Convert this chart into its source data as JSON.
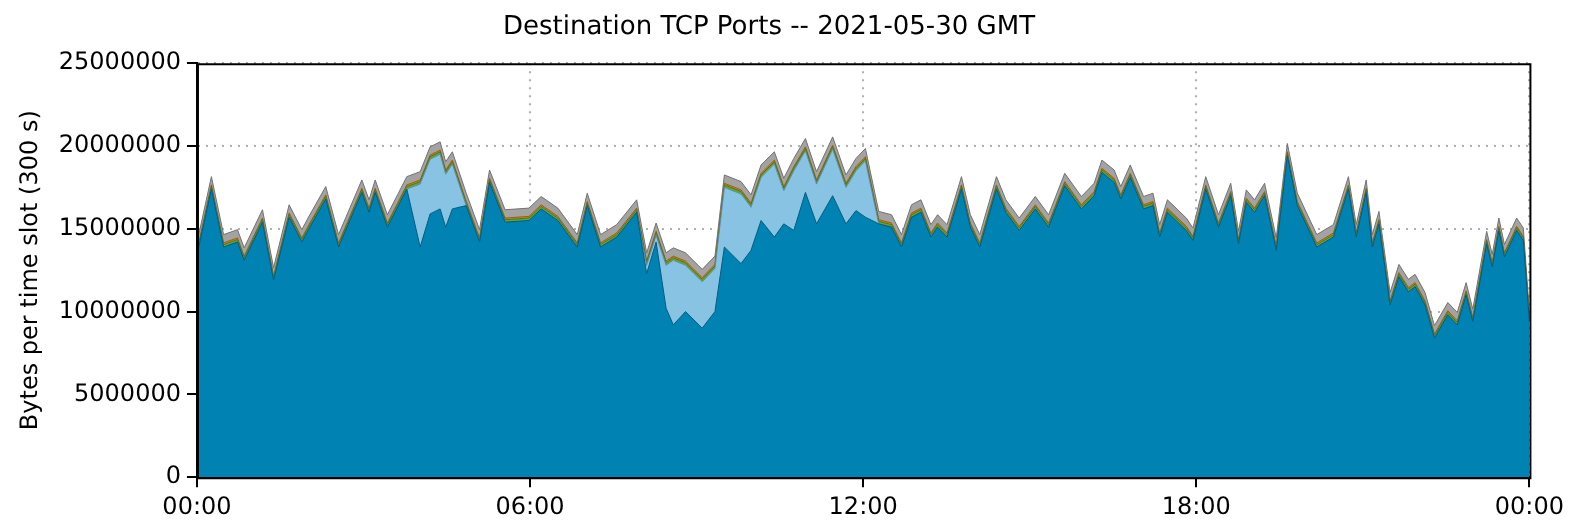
{
  "chart_data": {
    "type": "area",
    "title": "Destination TCP Ports -- 2021-05-30 GMT",
    "ylabel": "Bytes per time slot (300 s)",
    "stacked": true,
    "grid": true,
    "marker": "none",
    "xlim": [
      0,
      24
    ],
    "xticks": [
      {
        "value": 0,
        "label": "00:00"
      },
      {
        "value": 6,
        "label": "06:00"
      },
      {
        "value": 12,
        "label": "12:00"
      },
      {
        "value": 18,
        "label": "18:00"
      },
      {
        "value": 24,
        "label": "00:00"
      }
    ],
    "ylim": [
      0,
      25000000
    ],
    "yticks": [
      0,
      5000000,
      10000000,
      15000000,
      20000000,
      25000000
    ],
    "x": [
      0,
      0.26,
      0.48,
      0.73,
      0.85,
      1.18,
      1.38,
      1.66,
      1.89,
      2.0,
      2.32,
      2.55,
      2.97,
      3.1,
      3.21,
      3.43,
      3.78,
      4.02,
      4.2,
      4.38,
      4.48,
      4.6,
      4.85,
      5.09,
      5.27,
      5.55,
      5.98,
      6.2,
      6.5,
      6.85,
      7.03,
      7.27,
      7.56,
      7.92,
      8.1,
      8.27,
      8.45,
      8.58,
      8.8,
      9.1,
      9.33,
      9.5,
      9.8,
      9.98,
      10.16,
      10.4,
      10.57,
      10.75,
      10.96,
      11.16,
      11.45,
      11.69,
      11.87,
      12.04,
      12.28,
      12.51,
      12.69,
      12.87,
      13.04,
      13.22,
      13.34,
      13.51,
      13.77,
      13.93,
      14.1,
      14.4,
      14.57,
      14.81,
      15.1,
      15.34,
      15.63,
      15.93,
      16.16,
      16.3,
      16.52,
      16.64,
      16.81,
      17.05,
      17.22,
      17.34,
      17.48,
      17.82,
      17.94,
      18.17,
      18.4,
      18.62,
      18.76,
      18.9,
      19.05,
      19.23,
      19.44,
      19.64,
      19.82,
      20.17,
      20.47,
      20.74,
      20.88,
      21.06,
      21.17,
      21.29,
      21.49,
      21.65,
      21.82,
      21.94,
      22.12,
      22.29,
      22.53,
      22.7,
      22.86,
      22.98,
      23.23,
      23.33,
      23.45,
      23.55,
      23.77,
      23.89,
      24
    ],
    "series": [
      {
        "color": "#0082b2",
        "values": [
          13400000,
          17400000,
          13900000,
          14200000,
          13100000,
          15400000,
          11900000,
          15700000,
          14200000,
          14900000,
          16800000,
          13900000,
          17200000,
          16000000,
          17200000,
          15100000,
          17400000,
          13900000,
          15900000,
          16200000,
          15100000,
          16200000,
          16400000,
          14200000,
          17800000,
          15400000,
          15500000,
          16200000,
          15500000,
          13900000,
          16400000,
          13900000,
          14500000,
          16000000,
          12300000,
          14200000,
          10200000,
          9200000,
          10000000,
          9000000,
          10000000,
          13900000,
          12900000,
          13700000,
          15500000,
          14500000,
          15300000,
          14900000,
          17200000,
          15300000,
          17000000,
          15300000,
          16100000,
          15700000,
          15300000,
          15100000,
          13900000,
          15700000,
          16000000,
          14500000,
          15100000,
          14500000,
          17400000,
          15100000,
          13900000,
          17400000,
          16000000,
          14900000,
          16200000,
          15100000,
          17600000,
          16200000,
          17000000,
          18400000,
          17800000,
          16800000,
          18100000,
          16200000,
          16400000,
          14500000,
          16000000,
          14900000,
          14300000,
          17400000,
          15100000,
          17000000,
          14100000,
          16600000,
          16000000,
          17000000,
          13700000,
          19400000,
          16400000,
          13900000,
          14500000,
          17400000,
          14500000,
          17200000,
          13900000,
          15300000,
          10400000,
          12100000,
          11200000,
          11500000,
          10400000,
          8400000,
          9800000,
          9200000,
          11000000,
          9400000,
          14100000,
          12700000,
          14900000,
          13300000,
          14900000,
          14300000,
          9400000
        ]
      },
      {
        "color": "#88c3e3",
        "values": [
          0,
          0,
          0,
          0,
          0,
          0,
          0,
          0,
          0,
          0,
          0,
          0,
          0,
          0,
          0,
          0,
          0,
          3800000,
          3300000,
          3300000,
          3200000,
          2700000,
          0,
          0,
          0,
          0,
          0,
          0,
          0,
          0,
          0,
          0,
          0,
          0,
          500000,
          400000,
          2600000,
          3900000,
          2800000,
          2800000,
          2600000,
          3600000,
          4200000,
          2600000,
          2600000,
          4400000,
          2000000,
          3600000,
          2500000,
          2400000,
          2800000,
          2200000,
          2400000,
          3400000,
          0,
          0,
          0,
          0,
          0,
          0,
          0,
          0,
          0,
          0,
          0,
          0,
          0,
          0,
          0,
          0,
          0,
          0,
          0,
          0,
          0,
          0,
          0,
          0,
          0,
          0,
          0,
          0,
          0,
          0,
          0,
          0,
          0,
          0,
          0,
          0,
          0,
          0,
          0,
          0,
          0,
          0,
          0,
          0,
          0,
          0,
          0,
          0,
          0,
          0,
          0,
          0,
          0,
          0,
          0,
          0,
          0,
          0,
          0,
          0,
          0,
          0,
          0
        ]
      },
      {
        "color": "#5ea832",
        "values": [
          150000,
          150000,
          150000,
          150000,
          150000,
          150000,
          150000,
          150000,
          150000,
          150000,
          150000,
          150000,
          150000,
          150000,
          150000,
          150000,
          150000,
          150000,
          150000,
          150000,
          150000,
          150000,
          150000,
          150000,
          150000,
          150000,
          150000,
          150000,
          150000,
          150000,
          150000,
          150000,
          150000,
          150000,
          150000,
          150000,
          150000,
          150000,
          150000,
          150000,
          150000,
          150000,
          150000,
          150000,
          150000,
          150000,
          150000,
          150000,
          150000,
          150000,
          150000,
          150000,
          150000,
          150000,
          150000,
          150000,
          150000,
          150000,
          150000,
          150000,
          150000,
          150000,
          150000,
          150000,
          150000,
          150000,
          150000,
          150000,
          150000,
          150000,
          150000,
          150000,
          150000,
          150000,
          150000,
          150000,
          150000,
          150000,
          150000,
          150000,
          150000,
          150000,
          150000,
          150000,
          150000,
          150000,
          150000,
          150000,
          150000,
          150000,
          150000,
          150000,
          150000,
          150000,
          150000,
          150000,
          150000,
          150000,
          150000,
          150000,
          150000,
          150000,
          150000,
          150000,
          150000,
          150000,
          150000,
          150000,
          150000,
          150000,
          150000,
          150000,
          150000,
          150000,
          150000,
          150000,
          150000
        ]
      },
      {
        "color": "#e0820c",
        "values": [
          100000,
          100000,
          100000,
          100000,
          100000,
          100000,
          100000,
          100000,
          100000,
          100000,
          100000,
          100000,
          100000,
          100000,
          100000,
          100000,
          100000,
          100000,
          100000,
          100000,
          100000,
          100000,
          100000,
          100000,
          100000,
          100000,
          100000,
          100000,
          100000,
          100000,
          100000,
          100000,
          100000,
          100000,
          100000,
          100000,
          100000,
          100000,
          100000,
          100000,
          100000,
          100000,
          100000,
          100000,
          100000,
          100000,
          100000,
          100000,
          100000,
          100000,
          100000,
          100000,
          100000,
          100000,
          100000,
          100000,
          100000,
          100000,
          100000,
          100000,
          100000,
          100000,
          100000,
          100000,
          100000,
          100000,
          100000,
          100000,
          100000,
          100000,
          100000,
          100000,
          100000,
          100000,
          100000,
          100000,
          100000,
          100000,
          100000,
          100000,
          100000,
          100000,
          100000,
          100000,
          100000,
          100000,
          100000,
          100000,
          100000,
          100000,
          100000,
          100000,
          100000,
          100000,
          100000,
          100000,
          100000,
          100000,
          100000,
          100000,
          100000,
          100000,
          100000,
          100000,
          100000,
          100000,
          100000,
          100000,
          100000,
          100000,
          100000,
          100000,
          100000,
          100000,
          100000,
          100000,
          100000
        ]
      },
      {
        "color": "#a3a3a3",
        "values": [
          500000,
          500000,
          500000,
          500000,
          500000,
          500000,
          500000,
          500000,
          500000,
          500000,
          500000,
          500000,
          500000,
          500000,
          500000,
          500000,
          500000,
          500000,
          500000,
          500000,
          500000,
          500000,
          500000,
          500000,
          500000,
          500000,
          500000,
          500000,
          500000,
          500000,
          500000,
          500000,
          500000,
          500000,
          500000,
          500000,
          500000,
          500000,
          500000,
          500000,
          500000,
          500000,
          500000,
          500000,
          500000,
          500000,
          500000,
          500000,
          500000,
          500000,
          500000,
          500000,
          500000,
          500000,
          500000,
          500000,
          500000,
          500000,
          500000,
          500000,
          500000,
          500000,
          500000,
          500000,
          500000,
          500000,
          500000,
          500000,
          500000,
          500000,
          500000,
          500000,
          500000,
          500000,
          500000,
          500000,
          500000,
          500000,
          500000,
          500000,
          500000,
          500000,
          500000,
          500000,
          500000,
          500000,
          500000,
          500000,
          500000,
          500000,
          500000,
          500000,
          500000,
          500000,
          500000,
          500000,
          500000,
          500000,
          500000,
          500000,
          500000,
          500000,
          500000,
          500000,
          500000,
          500000,
          500000,
          500000,
          500000,
          500000,
          500000,
          500000,
          500000,
          500000,
          500000,
          500000,
          300000
        ]
      }
    ]
  }
}
